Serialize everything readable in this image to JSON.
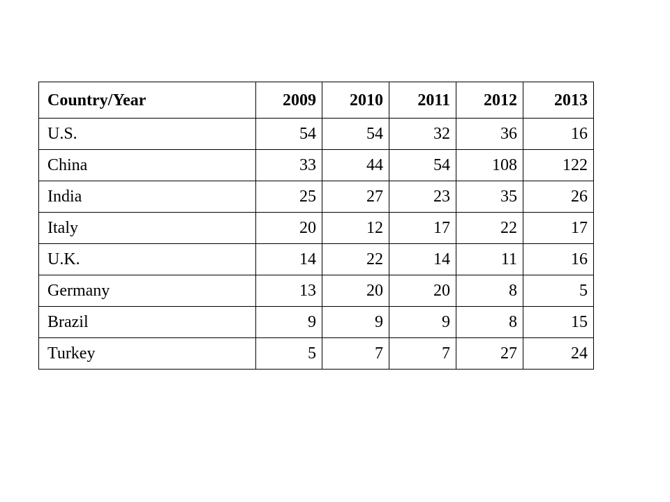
{
  "table": {
    "header": [
      "Country/Year",
      "2009",
      "2010",
      "2011",
      "2012",
      "2013"
    ],
    "rows": [
      [
        "U.S.",
        "54",
        "54",
        "32",
        "36",
        "16"
      ],
      [
        "China",
        "33",
        "44",
        "54",
        "108",
        "122"
      ],
      [
        "India",
        "25",
        "27",
        "23",
        "35",
        "26"
      ],
      [
        "Italy",
        "20",
        "12",
        "17",
        "22",
        "17"
      ],
      [
        "U.K.",
        "14",
        "22",
        "14",
        "11",
        "16"
      ],
      [
        "Germany",
        "13",
        "20",
        "20",
        "8",
        "5"
      ],
      [
        "Brazil",
        "9",
        "9",
        "9",
        "8",
        "15"
      ],
      [
        "Turkey",
        "5",
        "7",
        "7",
        "27",
        "24"
      ]
    ]
  }
}
